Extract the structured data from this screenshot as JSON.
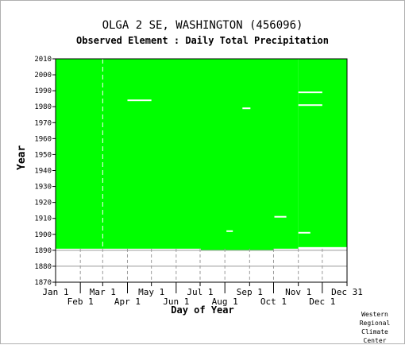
{
  "chart_data": {
    "type": "heatmap",
    "title": "OLGA 2 SE, WASHINGTON   (456096)",
    "subtitle": "Observed Element : Daily Total Precipitation",
    "xlabel": "Day of Year",
    "ylabel": "Year",
    "ylim": [
      1870,
      2010
    ],
    "y_ticks": [
      1870,
      1880,
      1890,
      1900,
      1910,
      1920,
      1930,
      1940,
      1950,
      1960,
      1970,
      1980,
      1990,
      2000,
      2010
    ],
    "x_ticks_top": [
      "Jan 1",
      "Mar 1",
      "May 1",
      "Jul 1",
      "Sep 1",
      "Nov 1",
      "Dec 31"
    ],
    "x_ticks_bottom": [
      "Feb 1",
      "Apr 1",
      "Jun 1",
      "Aug 1",
      "Oct 1",
      "Dec 1"
    ],
    "grid": true,
    "data_color": "#00ff00",
    "coverage": {
      "full_record_years": [
        1891,
        2010
      ],
      "note_segments": [
        {
          "from_day": 1,
          "to_day": 182,
          "start_year": 1891
        },
        {
          "from_day": 183,
          "to_day": 273,
          "start_year": 1890
        },
        {
          "from_day": 274,
          "to_day": 304,
          "start_year": 1891
        },
        {
          "from_day": 305,
          "to_day": 365,
          "start_year": 1892
        }
      ],
      "missing_gaps": [
        {
          "year": 1984,
          "from_day": 91,
          "to_day": 121
        },
        {
          "year": 1989,
          "from_day": 305,
          "to_day": 335
        },
        {
          "year": 1981,
          "from_day": 305,
          "to_day": 335
        },
        {
          "year": 1979,
          "from_day": 235,
          "to_day": 245
        },
        {
          "year": 1911,
          "from_day": 275,
          "to_day": 290
        },
        {
          "year": 1902,
          "from_day": 215,
          "to_day": 223
        },
        {
          "year": 1901,
          "from_day": 305,
          "to_day": 320
        }
      ],
      "vertical_gaps": [
        {
          "day": 60,
          "from_year": 1891,
          "to_year": 2010
        }
      ]
    }
  },
  "footer": {
    "credit_lines": [
      "Western",
      "Regional",
      "Climate",
      "Center"
    ]
  }
}
